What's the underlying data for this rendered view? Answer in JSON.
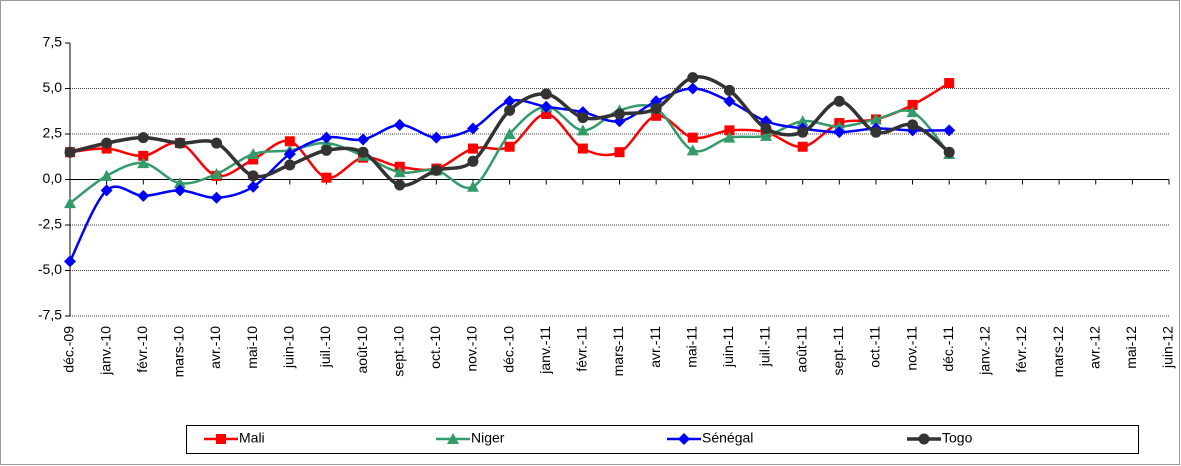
{
  "chart_data": {
    "type": "line",
    "categories": [
      "déc.-09",
      "janv.-10",
      "févr.-10",
      "mars-10",
      "avr.-10",
      "mai-10",
      "juin-10",
      "juil.-10",
      "août-10",
      "sept.-10",
      "oct.-10",
      "nov.-10",
      "déc.-10",
      "janv.-11",
      "févr.-11",
      "mars-11",
      "avr.-11",
      "mai-11",
      "juin-11",
      "juil.-11",
      "août-11",
      "sept.-11",
      "oct.-11",
      "nov.-11",
      "déc.-11",
      "janv.-12",
      "févr.-12",
      "mars-12",
      "avr.-12",
      "mai-12",
      "juin-12"
    ],
    "series": [
      {
        "name": "Mali",
        "color": "#ff0000",
        "marker": "square",
        "values": [
          1.5,
          1.7,
          1.3,
          2.0,
          0.2,
          1.1,
          2.1,
          0.1,
          1.2,
          0.7,
          0.6,
          1.7,
          1.8,
          3.6,
          1.7,
          1.5,
          3.5,
          2.3,
          2.7,
          2.6,
          1.8,
          3.1,
          3.3,
          4.1,
          5.3,
          null,
          null,
          null,
          null,
          null,
          null
        ]
      },
      {
        "name": "Niger",
        "color": "#339a6a",
        "marker": "triangle",
        "values": [
          -1.3,
          0.2,
          0.9,
          -0.2,
          0.3,
          1.4,
          1.6,
          2.0,
          1.3,
          0.4,
          0.5,
          -0.4,
          2.5,
          4.0,
          2.7,
          3.8,
          3.9,
          1.6,
          2.3,
          2.4,
          3.2,
          2.9,
          3.3,
          3.7,
          1.4,
          null,
          null,
          null,
          null,
          null,
          null
        ]
      },
      {
        "name": "Sénégal",
        "color": "#0000ff",
        "marker": "diamond",
        "values": [
          -4.5,
          -0.6,
          -0.9,
          -0.6,
          -1.0,
          -0.4,
          1.4,
          2.3,
          2.2,
          3.0,
          2.3,
          2.8,
          4.3,
          4.0,
          3.7,
          3.2,
          4.3,
          5.0,
          4.3,
          3.2,
          2.8,
          2.6,
          2.8,
          2.7,
          2.7,
          null,
          null,
          null,
          null,
          null,
          null
        ]
      },
      {
        "name": "Togo",
        "color": "#333333",
        "marker": "circle",
        "values": [
          1.5,
          2.0,
          2.3,
          2.0,
          2.0,
          0.2,
          0.8,
          1.6,
          1.5,
          -0.3,
          0.5,
          1.0,
          3.8,
          4.7,
          3.4,
          3.6,
          3.9,
          5.6,
          4.9,
          2.8,
          2.6,
          4.3,
          2.6,
          3.0,
          1.5,
          null,
          null,
          null,
          null,
          null,
          null
        ]
      }
    ],
    "ylim": [
      -7.5,
      7.5
    ],
    "yticks": [
      {
        "value": -7.5,
        "label": "-7,5"
      },
      {
        "value": -5,
        "label": "-5,0"
      },
      {
        "value": -2.5,
        "label": "-2,5"
      },
      {
        "value": 0,
        "label": "0,0"
      },
      {
        "value": 2.5,
        "label": "2,5"
      },
      {
        "value": 5,
        "label": "5,0"
      },
      {
        "value": 7.5,
        "label": "7,5"
      }
    ],
    "grid": true,
    "smooth": true,
    "legend": "bottom"
  }
}
